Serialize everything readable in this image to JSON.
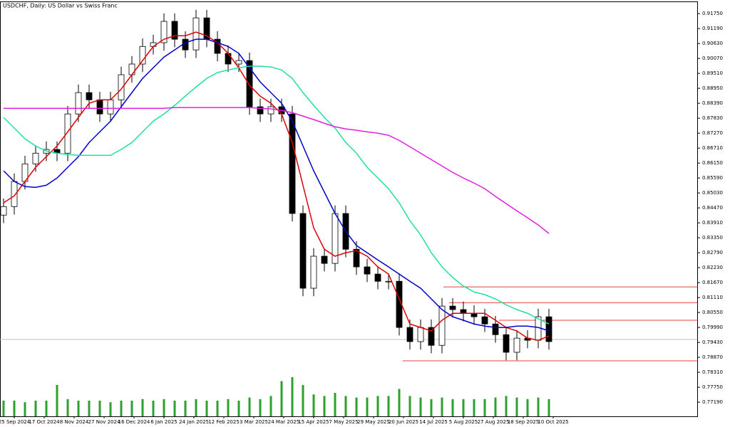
{
  "chart_data": {
    "type": "candlestick",
    "title": "USDCHF, Daily: US Dollar vs Swiss Franc",
    "ylim": [
      0.7666,
      0.9218
    ],
    "yticks": [
      {
        "value": 0.9175,
        "label": "0.91750"
      },
      {
        "value": 0.9119,
        "label": "0.91190"
      },
      {
        "value": 0.9063,
        "label": "0.90630"
      },
      {
        "value": 0.9007,
        "label": "0.90070"
      },
      {
        "value": 0.8951,
        "label": "0.89510"
      },
      {
        "value": 0.8895,
        "label": "0.88950"
      },
      {
        "value": 0.8839,
        "label": "0.88390"
      },
      {
        "value": 0.8783,
        "label": "0.87830"
      },
      {
        "value": 0.8727,
        "label": "0.87270"
      },
      {
        "value": 0.8671,
        "label": "0.86710"
      },
      {
        "value": 0.8615,
        "label": "0.86150"
      },
      {
        "value": 0.8559,
        "label": "0.85590"
      },
      {
        "value": 0.8503,
        "label": "0.85030"
      },
      {
        "value": 0.8447,
        "label": "0.84470"
      },
      {
        "value": 0.8391,
        "label": "0.83910"
      },
      {
        "value": 0.8335,
        "label": "0.83350"
      },
      {
        "value": 0.8279,
        "label": "0.82790"
      },
      {
        "value": 0.8223,
        "label": "0.82230"
      },
      {
        "value": 0.8167,
        "label": "0.81670"
      },
      {
        "value": 0.8111,
        "label": "0.81110"
      },
      {
        "value": 0.8055,
        "label": "0.80550"
      },
      {
        "value": 0.7999,
        "label": "0.79990"
      },
      {
        "value": 0.7943,
        "label": "0.79430"
      },
      {
        "value": 0.7887,
        "label": "0.78870"
      },
      {
        "value": 0.7831,
        "label": "0.78310"
      },
      {
        "value": 0.7775,
        "label": "0.77750"
      },
      {
        "value": 0.7719,
        "label": "0.77190"
      }
    ],
    "x_labels": [
      "25 Sep 2024",
      "17 Oct 2024",
      "8 Nov 2024",
      "27 Nov 2024",
      "16 Dec 2024",
      "6 Jan 2025",
      "24 Jan 2025",
      "12 Feb 2025",
      "3 Mar 2025",
      "24 Mar 2025",
      "15 Apr 2025",
      "7 May 2025",
      "29 May 2025",
      "20 Jun 2025",
      "14 Jul 2025",
      "5 Aug 2025",
      "27 Aug 2025",
      "18 Sep 2025",
      "10 Oct 2025"
    ],
    "open": [
      0.842,
      0.8452,
      0.8546,
      0.8612,
      0.8652,
      0.8666,
      0.8652,
      0.8799,
      0.8879,
      0.8852,
      0.8799,
      0.8852,
      0.8946,
      0.8986,
      0.9052,
      0.9066,
      0.9146,
      0.9079,
      0.9039,
      0.9159,
      0.9079,
      0.9026,
      0.8986,
      0.8999,
      0.8826,
      0.8799,
      0.8826,
      0.8799,
      0.8426,
      0.8146,
      0.8266,
      0.8239,
      0.8426,
      0.8292,
      0.8226,
      0.8199,
      0.8172,
      0.8172,
      0.7999,
      0.7946,
      0.7999,
      0.7932,
      0.8079,
      0.8066,
      0.8052,
      0.8039,
      0.8012,
      0.7972,
      0.7906,
      0.7959,
      0.7951,
      0.8039
    ],
    "high": [
      0.8482,
      0.8576,
      0.8642,
      0.8682,
      0.8696,
      0.8696,
      0.8829,
      0.8909,
      0.8909,
      0.8882,
      0.8882,
      0.8976,
      0.9016,
      0.9082,
      0.9096,
      0.9176,
      0.9176,
      0.9109,
      0.9189,
      0.9189,
      0.9109,
      0.9056,
      0.9029,
      0.9029,
      0.8856,
      0.8856,
      0.8856,
      0.8829,
      0.8456,
      0.8296,
      0.8296,
      0.8456,
      0.8456,
      0.8322,
      0.8256,
      0.8229,
      0.8202,
      0.8202,
      0.8029,
      0.8029,
      0.8029,
      0.8109,
      0.8109,
      0.8096,
      0.8082,
      0.8069,
      0.8042,
      0.8002,
      0.7989,
      0.7989,
      0.8069,
      0.8069
    ],
    "low": [
      0.839,
      0.8422,
      0.8516,
      0.8582,
      0.8622,
      0.8622,
      0.8622,
      0.8769,
      0.8822,
      0.8769,
      0.8769,
      0.8822,
      0.8916,
      0.8956,
      0.9022,
      0.9036,
      0.9049,
      0.9009,
      0.9009,
      0.9049,
      0.8996,
      0.8956,
      0.8956,
      0.8796,
      0.8769,
      0.8769,
      0.8769,
      0.8396,
      0.8116,
      0.8116,
      0.8209,
      0.8209,
      0.8262,
      0.8196,
      0.8169,
      0.8142,
      0.8142,
      0.7969,
      0.7916,
      0.7916,
      0.7902,
      0.7902,
      0.8036,
      0.8022,
      0.8009,
      0.7982,
      0.7942,
      0.7876,
      0.7876,
      0.7921,
      0.7921,
      0.7916
    ],
    "close": [
      0.8452,
      0.8546,
      0.8612,
      0.8652,
      0.8666,
      0.8652,
      0.8799,
      0.8879,
      0.8852,
      0.8799,
      0.8852,
      0.8946,
      0.8986,
      0.9052,
      0.9066,
      0.9146,
      0.9079,
      0.9039,
      0.9159,
      0.9079,
      0.9026,
      0.8986,
      0.8999,
      0.8826,
      0.8799,
      0.8826,
      0.8799,
      0.8426,
      0.8146,
      0.8266,
      0.8239,
      0.8426,
      0.8292,
      0.8226,
      0.8199,
      0.8172,
      0.8172,
      0.7999,
      0.7946,
      0.7999,
      0.7932,
      0.8079,
      0.8066,
      0.8052,
      0.8039,
      0.8012,
      0.7972,
      0.7906,
      0.7959,
      0.7951,
      0.8039,
      0.7946
    ],
    "volume": [
      20,
      20,
      18,
      20,
      20,
      40,
      22,
      20,
      20,
      20,
      18,
      20,
      20,
      22,
      20,
      22,
      20,
      20,
      22,
      20,
      20,
      22,
      20,
      24,
      22,
      26,
      45,
      50,
      40,
      28,
      26,
      30,
      26,
      24,
      24,
      26,
      26,
      35,
      26,
      24,
      22,
      24,
      22,
      22,
      22,
      22,
      24,
      26,
      24,
      22,
      24,
      22
    ],
    "volume_color": "#2ca02c",
    "ma": [
      {
        "color": "#e00000",
        "values": [
          0.8466,
          0.8492,
          0.8546,
          0.8599,
          0.8639,
          0.8679,
          0.8732,
          0.8786,
          0.8839,
          0.8852,
          0.8852,
          0.8892,
          0.8946,
          0.8999,
          0.9052,
          0.9079,
          0.9092,
          0.9092,
          0.9106,
          0.9092,
          0.9066,
          0.9026,
          0.8972,
          0.8906,
          0.8866,
          0.8839,
          0.8799,
          0.8692,
          0.8532,
          0.8372,
          0.8292,
          0.8266,
          0.8279,
          0.8287,
          0.8266,
          0.8226,
          0.8199,
          0.8106,
          0.8012,
          0.7999,
          0.7986,
          0.8026,
          0.8052,
          0.8052,
          0.8052,
          0.8052,
          0.8026,
          0.7999,
          0.7986,
          0.7959,
          0.7951,
          0.7967
        ]
      },
      {
        "color": "#0000c8",
        "values": [
          0.8586,
          0.8546,
          0.8527,
          0.8524,
          0.8532,
          0.8559,
          0.8599,
          0.8639,
          0.8692,
          0.8732,
          0.8772,
          0.8826,
          0.8879,
          0.8932,
          0.8972,
          0.9012,
          0.9039,
          0.9066,
          0.9079,
          0.9079,
          0.9066,
          0.9052,
          0.9026,
          0.8972,
          0.8919,
          0.8879,
          0.8839,
          0.8772,
          0.8679,
          0.8586,
          0.8506,
          0.8426,
          0.8359,
          0.8306,
          0.8279,
          0.8252,
          0.8226,
          0.8199,
          0.8172,
          0.8146,
          0.8106,
          0.8066,
          0.8039,
          0.8026,
          0.8012,
          0.8004,
          0.7999,
          0.7999,
          0.8004,
          0.8004,
          0.7999,
          0.7986
        ]
      },
      {
        "color": "#20e0a0",
        "values": [
          0.8786,
          0.8746,
          0.8706,
          0.8679,
          0.866,
          0.8652,
          0.8647,
          0.8644,
          0.8644,
          0.8644,
          0.8644,
          0.8666,
          0.8692,
          0.8732,
          0.8772,
          0.8799,
          0.8831,
          0.8866,
          0.89,
          0.8932,
          0.8954,
          0.8964,
          0.8972,
          0.8978,
          0.8978,
          0.8975,
          0.8964,
          0.8932,
          0.8879,
          0.8831,
          0.8786,
          0.8746,
          0.8692,
          0.8652,
          0.8599,
          0.8559,
          0.8519,
          0.8466,
          0.8399,
          0.8346,
          0.8279,
          0.8226,
          0.8186,
          0.8154,
          0.8132,
          0.8122,
          0.8106,
          0.8084,
          0.8066,
          0.8052,
          0.8031,
          0.8012
        ]
      },
      {
        "color": "#e020e0",
        "values": [
          0.882,
          0.882,
          0.882,
          0.882,
          0.882,
          0.882,
          0.882,
          0.882,
          0.882,
          0.882,
          0.882,
          0.882,
          0.882,
          0.882,
          0.882,
          0.882,
          0.8823,
          0.8823,
          0.8823,
          0.8823,
          0.8823,
          0.8823,
          0.8823,
          0.8823,
          0.882,
          0.8818,
          0.8812,
          0.8804,
          0.8791,
          0.8778,
          0.8764,
          0.8751,
          0.8743,
          0.8738,
          0.8732,
          0.8727,
          0.8719,
          0.87,
          0.8676,
          0.8652,
          0.8628,
          0.8604,
          0.858,
          0.8559,
          0.854,
          0.8519,
          0.849,
          0.8463,
          0.8436,
          0.841,
          0.8383,
          0.8351
        ]
      }
    ],
    "levels": [
      0.8151,
      0.8092,
      0.8026,
      0.7874
    ],
    "level_color": "#e00000",
    "last_price": 0.7954
  }
}
